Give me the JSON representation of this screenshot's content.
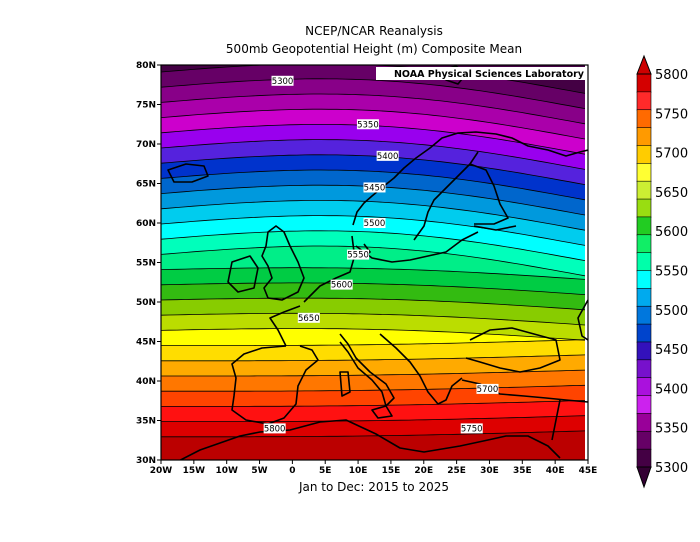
{
  "title_line1": "NCEP/NCAR Reanalysis",
  "title_line2": "500mb Geopotential Height (m) Composite Mean",
  "subtitle": "Jan to Dec: 2015 to 2025",
  "credit": "NOAA Physical Sciences Laboratory",
  "map": {
    "lon_range": [
      -20,
      45
    ],
    "lat_range": [
      30,
      80
    ],
    "x_ticks": [
      "20W",
      "15W",
      "10W",
      "5W",
      "0",
      "5E",
      "10E",
      "15E",
      "20E",
      "25E",
      "30E",
      "35E",
      "40E",
      "45E"
    ],
    "y_ticks": [
      "30N",
      "35N",
      "40N",
      "45N",
      "50N",
      "55N",
      "60N",
      "65N",
      "70N",
      "75N",
      "80N"
    ]
  },
  "contour_labels": [
    {
      "text": "5300",
      "lon": -1.5,
      "lat": 78.0
    },
    {
      "text": "5350",
      "lon": 11.5,
      "lat": 72.5
    },
    {
      "text": "5400",
      "lon": 14.5,
      "lat": 68.5
    },
    {
      "text": "5450",
      "lon": 12.5,
      "lat": 64.5
    },
    {
      "text": "5500",
      "lon": 12.5,
      "lat": 60.0
    },
    {
      "text": "5550",
      "lon": 10.0,
      "lat": 56.0
    },
    {
      "text": "5600",
      "lon": 7.5,
      "lat": 52.2
    },
    {
      "text": "5650",
      "lon": 2.5,
      "lat": 48.0
    },
    {
      "text": "5700",
      "lon": 29.7,
      "lat": 39.0
    },
    {
      "text": "5750",
      "lon": 27.3,
      "lat": 34.0
    },
    {
      "text": "5800",
      "lon": -2.7,
      "lat": 34.0
    }
  ],
  "colorbar": {
    "labels": [
      "5800",
      "5750",
      "5700",
      "5650",
      "5600",
      "5550",
      "5500",
      "5450",
      "5400",
      "5350",
      "5300"
    ],
    "colors": [
      "#d40000",
      "#ff2a2a",
      "#ff6a00",
      "#ff9a00",
      "#ffcc00",
      "#ffff33",
      "#ccee33",
      "#99dd11",
      "#22cc22",
      "#11ee66",
      "#00ffaa",
      "#00ffff",
      "#00aaee",
      "#0077dd",
      "#0044cc",
      "#3311bb",
      "#7711cc",
      "#aa11dd",
      "#cc22ee",
      "#990099",
      "#660066",
      "#440044"
    ]
  }
}
